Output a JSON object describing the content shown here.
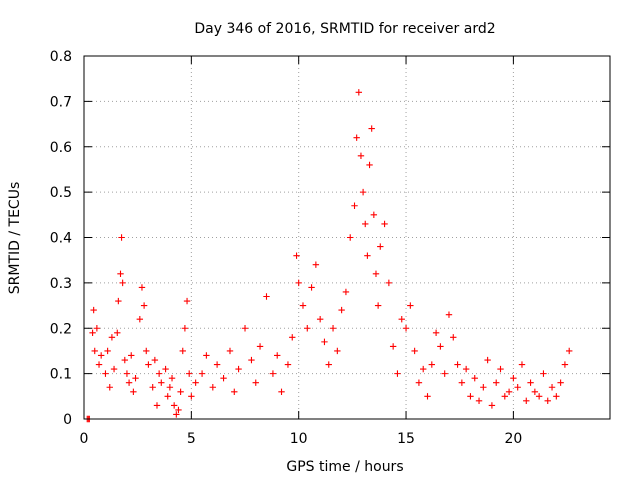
{
  "chart_data": {
    "type": "scatter",
    "title": "Day 346 of 2016, SRMTID for receiver ard2",
    "xlabel": "GPS time / hours",
    "ylabel": "SRMTID / TECUs",
    "xlim": [
      0,
      24.5
    ],
    "ylim": [
      0,
      0.8
    ],
    "xticks": [
      0,
      5,
      10,
      15,
      20
    ],
    "xtick_labels": [
      "0",
      "5",
      "10",
      "15",
      "20"
    ],
    "yticks": [
      0,
      0.1,
      0.2,
      0.3,
      0.4,
      0.5,
      0.6,
      0.7,
      0.8
    ],
    "ytick_labels": [
      "0",
      "0.1",
      "0.2",
      "0.3",
      "0.4",
      "0.5",
      "0.6",
      "0.7",
      "0.8"
    ],
    "grid": true,
    "marker": "plus",
    "color": "#ff0000",
    "series": [
      {
        "name": "ard2",
        "points": [
          [
            0.15,
            0.0
          ],
          [
            0.2,
            0.0
          ],
          [
            0.25,
            0.0
          ],
          [
            0.4,
            0.19
          ],
          [
            0.45,
            0.24
          ],
          [
            0.5,
            0.15
          ],
          [
            0.6,
            0.2
          ],
          [
            0.7,
            0.12
          ],
          [
            0.8,
            0.14
          ],
          [
            1.0,
            0.1
          ],
          [
            1.1,
            0.15
          ],
          [
            1.2,
            0.07
          ],
          [
            1.3,
            0.18
          ],
          [
            1.4,
            0.11
          ],
          [
            1.55,
            0.19
          ],
          [
            1.6,
            0.26
          ],
          [
            1.7,
            0.32
          ],
          [
            1.75,
            0.4
          ],
          [
            1.8,
            0.3
          ],
          [
            1.9,
            0.13
          ],
          [
            2.0,
            0.1
          ],
          [
            2.1,
            0.08
          ],
          [
            2.2,
            0.14
          ],
          [
            2.3,
            0.06
          ],
          [
            2.4,
            0.09
          ],
          [
            2.6,
            0.22
          ],
          [
            2.7,
            0.29
          ],
          [
            2.8,
            0.25
          ],
          [
            2.9,
            0.15
          ],
          [
            3.0,
            0.12
          ],
          [
            3.2,
            0.07
          ],
          [
            3.3,
            0.13
          ],
          [
            3.4,
            0.03
          ],
          [
            3.5,
            0.1
          ],
          [
            3.6,
            0.08
          ],
          [
            3.8,
            0.11
          ],
          [
            3.9,
            0.05
          ],
          [
            4.0,
            0.07
          ],
          [
            4.1,
            0.09
          ],
          [
            4.2,
            0.03
          ],
          [
            4.3,
            0.01
          ],
          [
            4.4,
            0.02
          ],
          [
            4.5,
            0.06
          ],
          [
            4.6,
            0.15
          ],
          [
            4.7,
            0.2
          ],
          [
            4.8,
            0.26
          ],
          [
            4.9,
            0.1
          ],
          [
            5.0,
            0.05
          ],
          [
            5.2,
            0.08
          ],
          [
            5.5,
            0.1
          ],
          [
            5.7,
            0.14
          ],
          [
            6.0,
            0.07
          ],
          [
            6.2,
            0.12
          ],
          [
            6.5,
            0.09
          ],
          [
            6.8,
            0.15
          ],
          [
            7.0,
            0.06
          ],
          [
            7.2,
            0.11
          ],
          [
            7.5,
            0.2
          ],
          [
            7.8,
            0.13
          ],
          [
            8.0,
            0.08
          ],
          [
            8.2,
            0.16
          ],
          [
            8.5,
            0.27
          ],
          [
            8.8,
            0.1
          ],
          [
            9.0,
            0.14
          ],
          [
            9.2,
            0.06
          ],
          [
            9.5,
            0.12
          ],
          [
            9.7,
            0.18
          ],
          [
            9.9,
            0.36
          ],
          [
            10.0,
            0.3
          ],
          [
            10.2,
            0.25
          ],
          [
            10.4,
            0.2
          ],
          [
            10.6,
            0.29
          ],
          [
            10.8,
            0.34
          ],
          [
            11.0,
            0.22
          ],
          [
            11.2,
            0.17
          ],
          [
            11.4,
            0.12
          ],
          [
            11.6,
            0.2
          ],
          [
            11.8,
            0.15
          ],
          [
            12.0,
            0.24
          ],
          [
            12.2,
            0.28
          ],
          [
            12.4,
            0.4
          ],
          [
            12.6,
            0.47
          ],
          [
            12.7,
            0.62
          ],
          [
            12.8,
            0.72
          ],
          [
            12.9,
            0.58
          ],
          [
            13.0,
            0.5
          ],
          [
            13.1,
            0.43
          ],
          [
            13.2,
            0.36
          ],
          [
            13.3,
            0.56
          ],
          [
            13.4,
            0.64
          ],
          [
            13.5,
            0.45
          ],
          [
            13.6,
            0.32
          ],
          [
            13.7,
            0.25
          ],
          [
            13.8,
            0.38
          ],
          [
            14.0,
            0.43
          ],
          [
            14.2,
            0.3
          ],
          [
            14.4,
            0.16
          ],
          [
            14.6,
            0.1
          ],
          [
            14.8,
            0.22
          ],
          [
            15.0,
            0.2
          ],
          [
            15.2,
            0.25
          ],
          [
            15.4,
            0.15
          ],
          [
            15.6,
            0.08
          ],
          [
            15.8,
            0.11
          ],
          [
            16.0,
            0.05
          ],
          [
            16.2,
            0.12
          ],
          [
            16.4,
            0.19
          ],
          [
            16.6,
            0.16
          ],
          [
            16.8,
            0.1
          ],
          [
            17.0,
            0.23
          ],
          [
            17.2,
            0.18
          ],
          [
            17.4,
            0.12
          ],
          [
            17.6,
            0.08
          ],
          [
            17.8,
            0.11
          ],
          [
            18.0,
            0.05
          ],
          [
            18.2,
            0.09
          ],
          [
            18.4,
            0.04
          ],
          [
            18.6,
            0.07
          ],
          [
            18.8,
            0.13
          ],
          [
            19.0,
            0.03
          ],
          [
            19.2,
            0.08
          ],
          [
            19.4,
            0.11
          ],
          [
            19.6,
            0.05
          ],
          [
            19.8,
            0.06
          ],
          [
            20.0,
            0.09
          ],
          [
            20.2,
            0.07
          ],
          [
            20.4,
            0.12
          ],
          [
            20.6,
            0.04
          ],
          [
            20.8,
            0.08
          ],
          [
            21.0,
            0.06
          ],
          [
            21.2,
            0.05
          ],
          [
            21.4,
            0.1
          ],
          [
            21.6,
            0.04
          ],
          [
            21.8,
            0.07
          ],
          [
            22.0,
            0.05
          ],
          [
            22.2,
            0.08
          ],
          [
            22.4,
            0.12
          ],
          [
            22.6,
            0.15
          ]
        ]
      }
    ]
  }
}
